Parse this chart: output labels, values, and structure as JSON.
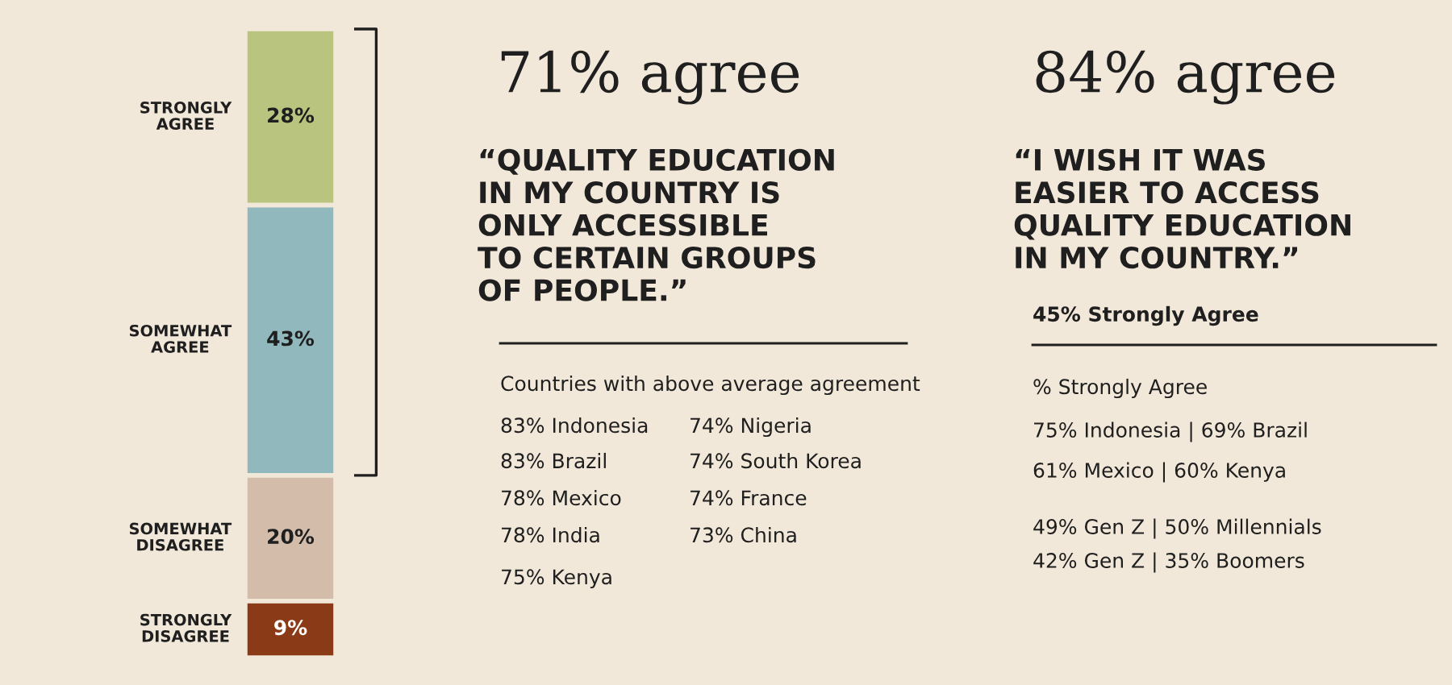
{
  "chart_data": [
    {
      "type": "bar",
      "stacked": true,
      "categories": [
        null
      ],
      "series": [
        {
          "name": "STRONGLY\nDISAGREE",
          "color": "#8a3a17",
          "values": [
            9
          ],
          "value_labels": [
            "9%"
          ]
        },
        {
          "name": "SOMEWHAT\nDISAGREE",
          "color": "#d4bcaa",
          "values": [
            20
          ],
          "value_labels": [
            "20%"
          ]
        },
        {
          "name": "SOMEWHAT\nAGREE",
          "color": "#91b8bd",
          "values": [
            43
          ],
          "value_labels": [
            "43%"
          ]
        },
        {
          "name": "STRONGLY\nAGREE",
          "color": "#b9c47f",
          "values": [
            28
          ],
          "value_labels": [
            "28%"
          ]
        }
      ]
    },
    {
      "type": "other",
      "title": "71% agree",
      "subtitle": "“QUALITY EDUCATION\nIN MY COUNTRY IS\nONLY ACCESSIBLE\nTO CERTAIN GROUPS\nOF PEOPLE.”",
      "annotations": [
        "Countries with above average agreement",
        "83% Indonesia",
        "83% Brazil",
        "78% Mexico",
        "78% India",
        "75% Kenya",
        "74% Nigeria",
        "74% South Korea",
        "74% France",
        "73% China"
      ]
    },
    {
      "type": "other",
      "title": "84% agree",
      "subtitle": "“I WISH IT WAS\nEASIER TO ACCESS\nQUALITY EDUCATION\nIN MY COUNTRY.”",
      "annotations": [
        "45% Strongly Agree",
        "% Strongly Agree",
        "75% Indonesia | 69% Brazil",
        "61% Mexico | 60% Kenya",
        "49% Gen Z | 50% Millennials",
        "42% Gen Z | 35% Boomers"
      ]
    }
  ]
}
